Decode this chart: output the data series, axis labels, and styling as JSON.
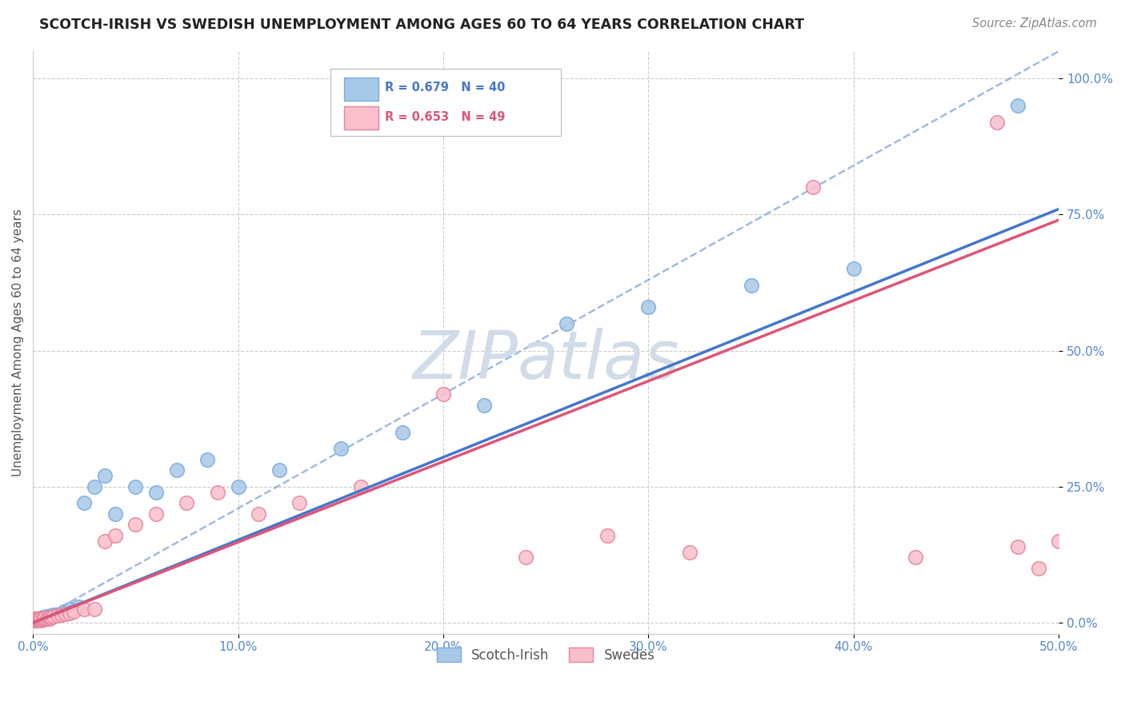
{
  "title": "SCOTCH-IRISH VS SWEDISH UNEMPLOYMENT AMONG AGES 60 TO 64 YEARS CORRELATION CHART",
  "source": "Source: ZipAtlas.com",
  "ylabel": "Unemployment Among Ages 60 to 64 years",
  "xlim": [
    0.0,
    0.5
  ],
  "ylim": [
    -0.02,
    1.05
  ],
  "xticks": [
    0.0,
    0.1,
    0.2,
    0.3,
    0.4,
    0.5
  ],
  "yticks": [
    0.0,
    0.25,
    0.5,
    0.75,
    1.0
  ],
  "xticklabels": [
    "0.0%",
    "10.0%",
    "20.0%",
    "30.0%",
    "40.0%",
    "50.0%"
  ],
  "yticklabels": [
    "0.0%",
    "25.0%",
    "50.0%",
    "75.0%",
    "100.0%"
  ],
  "scotch_irish_R": 0.679,
  "scotch_irish_N": 40,
  "swedes_R": 0.653,
  "swedes_N": 49,
  "scotch_irish_color": "#a8c8e8",
  "scotch_irish_edge": "#7aaddb",
  "swedes_color": "#f9c0cc",
  "swedes_edge": "#e8849a",
  "scotch_irish_line_color": "#4477cc",
  "swedes_line_color": "#dd5577",
  "ref_line_color": "#88aadd",
  "watermark_color": "#d0dce8",
  "background_color": "#ffffff",
  "grid_color": "#cccccc",
  "tick_color": "#5588cc",
  "legend_R_blue": "#4477cc",
  "legend_R_pink": "#dd5577",
  "si_x": [
    0.001,
    0.001,
    0.001,
    0.001,
    0.002,
    0.002,
    0.002,
    0.003,
    0.003,
    0.004,
    0.004,
    0.005,
    0.005,
    0.006,
    0.007,
    0.008,
    0.009,
    0.01,
    0.012,
    0.015,
    0.018,
    0.022,
    0.025,
    0.03,
    0.035,
    0.04,
    0.05,
    0.06,
    0.07,
    0.085,
    0.1,
    0.12,
    0.15,
    0.18,
    0.22,
    0.26,
    0.3,
    0.35,
    0.4,
    0.48
  ],
  "si_y": [
    0.005,
    0.005,
    0.006,
    0.007,
    0.005,
    0.006,
    0.007,
    0.006,
    0.008,
    0.007,
    0.009,
    0.008,
    0.01,
    0.01,
    0.012,
    0.012,
    0.013,
    0.015,
    0.015,
    0.02,
    0.025,
    0.03,
    0.22,
    0.25,
    0.27,
    0.2,
    0.25,
    0.24,
    0.28,
    0.3,
    0.25,
    0.28,
    0.32,
    0.35,
    0.4,
    0.55,
    0.58,
    0.62,
    0.65,
    0.95
  ],
  "sw_x": [
    0.001,
    0.001,
    0.001,
    0.001,
    0.001,
    0.002,
    0.002,
    0.002,
    0.002,
    0.003,
    0.003,
    0.003,
    0.004,
    0.004,
    0.005,
    0.005,
    0.006,
    0.006,
    0.007,
    0.008,
    0.008,
    0.009,
    0.01,
    0.012,
    0.014,
    0.016,
    0.018,
    0.02,
    0.025,
    0.03,
    0.035,
    0.04,
    0.05,
    0.06,
    0.075,
    0.09,
    0.11,
    0.13,
    0.16,
    0.2,
    0.24,
    0.28,
    0.32,
    0.38,
    0.43,
    0.47,
    0.48,
    0.49,
    0.5
  ],
  "sw_y": [
    0.004,
    0.005,
    0.005,
    0.006,
    0.007,
    0.004,
    0.005,
    0.006,
    0.007,
    0.005,
    0.006,
    0.008,
    0.005,
    0.007,
    0.006,
    0.008,
    0.007,
    0.009,
    0.008,
    0.008,
    0.01,
    0.01,
    0.012,
    0.014,
    0.015,
    0.016,
    0.018,
    0.02,
    0.025,
    0.025,
    0.15,
    0.16,
    0.18,
    0.2,
    0.22,
    0.24,
    0.2,
    0.22,
    0.25,
    0.42,
    0.12,
    0.16,
    0.13,
    0.8,
    0.12,
    0.92,
    0.14,
    0.1,
    0.15
  ],
  "blue_line_x0": 0.0,
  "blue_line_y0": 0.0,
  "blue_line_x1": 0.5,
  "blue_line_y1": 0.76,
  "pink_line_x0": 0.0,
  "pink_line_y0": 0.0,
  "pink_line_x1": 0.5,
  "pink_line_y1": 0.74
}
